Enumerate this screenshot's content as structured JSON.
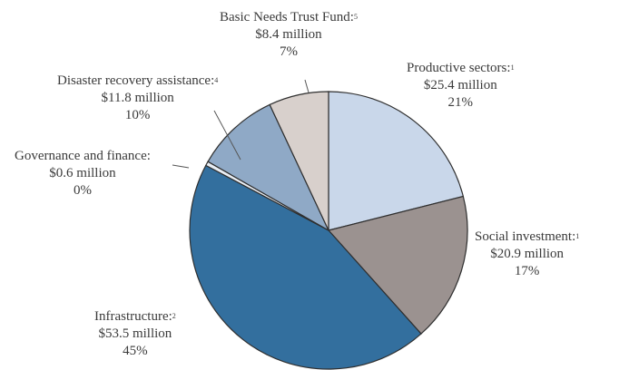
{
  "chart_data": {
    "type": "pie",
    "slices": [
      {
        "label": "Productive sectors",
        "note": "1",
        "amount": "$25.4 million",
        "pct": "21%",
        "value": 25.4,
        "color": "#c9d7ea"
      },
      {
        "label": "Social investment",
        "note": "1",
        "amount": "$20.9 million",
        "pct": "17%",
        "value": 20.9,
        "color": "#9b9290"
      },
      {
        "label": "Infrastructure",
        "note": "2",
        "amount": "$53.5 million",
        "pct": "45%",
        "value": 53.5,
        "color": "#336f9e"
      },
      {
        "label": "Governance and finance",
        "note": "",
        "amount": "$0.6 million",
        "pct": "0%",
        "value": 0.6,
        "color": "#e9eef4"
      },
      {
        "label": "Disaster recovery assistance",
        "note": "4",
        "amount": "$11.8 million",
        "pct": "10%",
        "value": 11.8,
        "color": "#8fa9c6"
      },
      {
        "label": "Basic Needs Trust Fund",
        "note": "5",
        "amount": "$8.4 million",
        "pct": "7%",
        "value": 8.4,
        "color": "#d8d0cc"
      }
    ]
  }
}
